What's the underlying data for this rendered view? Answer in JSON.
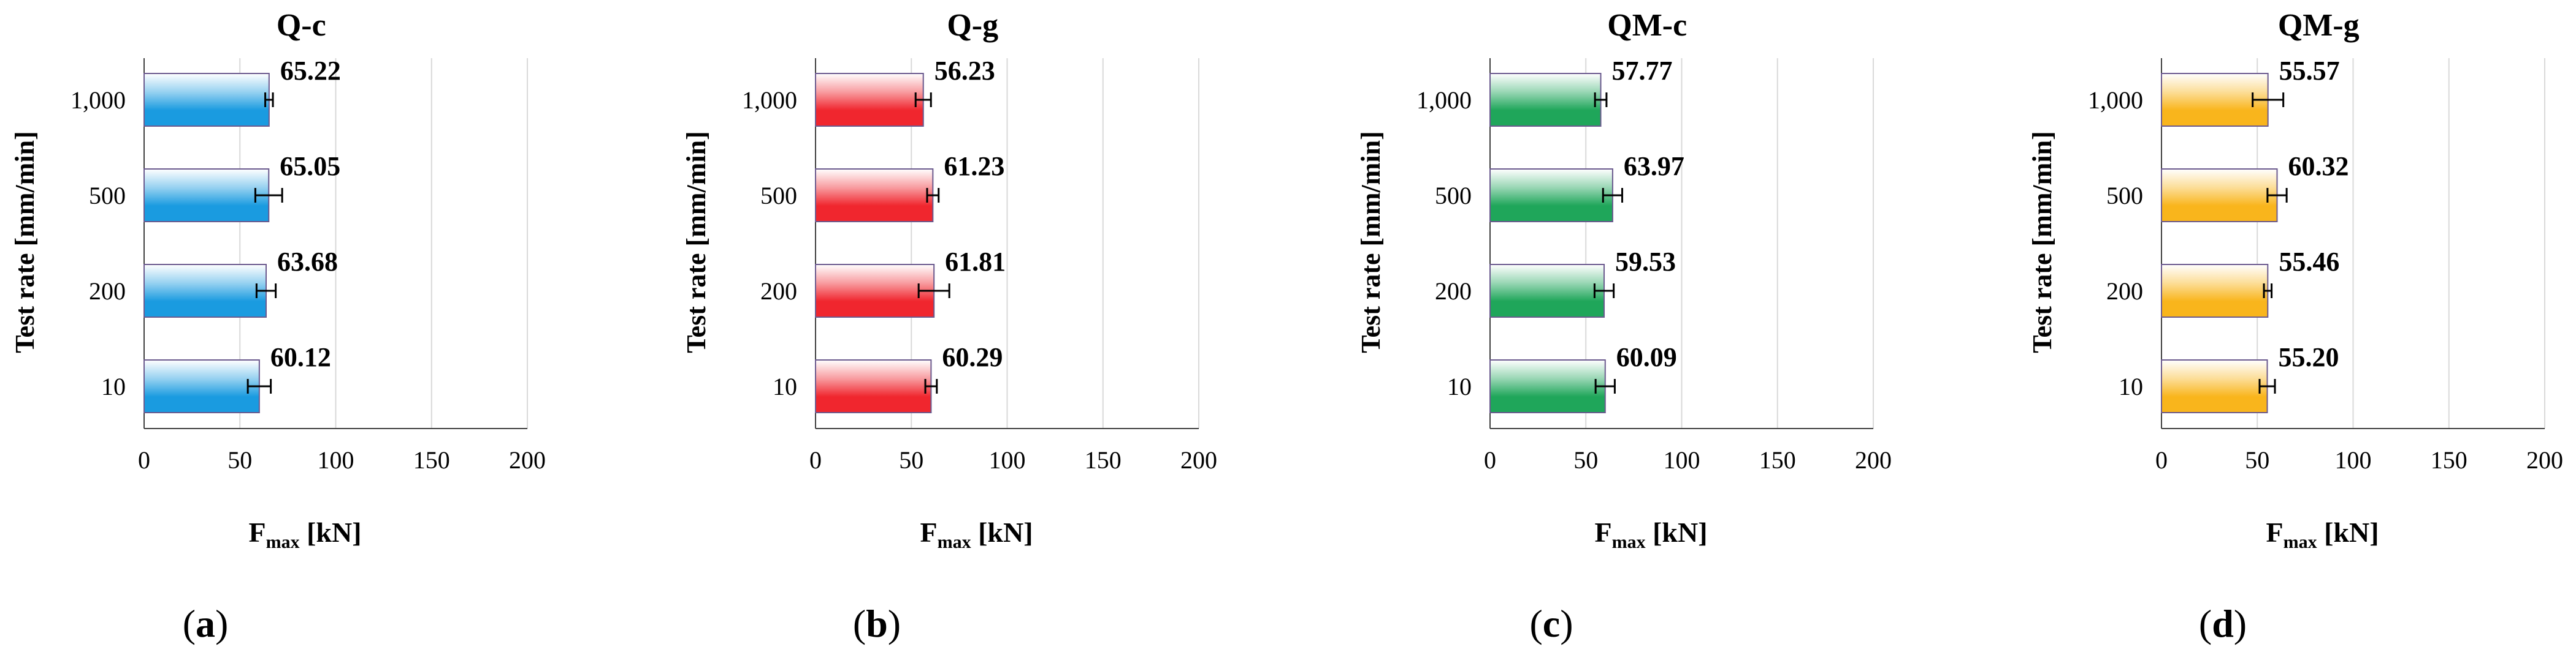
{
  "chart_data": [
    {
      "type": "bar",
      "orientation": "horizontal",
      "title": "Q-c",
      "caption_letter": "a",
      "categories": [
        "1,000",
        "500",
        "200",
        "10"
      ],
      "values": [
        65.22,
        65.05,
        63.68,
        60.12
      ],
      "value_labels": [
        "65.22",
        "65.05",
        "63.68",
        "60.12"
      ],
      "error_bars": [
        2,
        7,
        5,
        6
      ],
      "ylabel": "Test rate [mm/min]",
      "xlabel_main": "F",
      "xlabel_sub": "max",
      "xlabel_unit": " [kN]",
      "xlim": [
        0,
        200
      ],
      "xticks": [
        0,
        50,
        100,
        150,
        200
      ],
      "xtick_labels": [
        "0",
        "50",
        "100",
        "150",
        "200"
      ],
      "bar_color": "#1a9be0",
      "grid": true
    },
    {
      "type": "bar",
      "orientation": "horizontal",
      "title": "Q-g",
      "caption_letter": "b",
      "categories": [
        "1,000",
        "500",
        "200",
        "10"
      ],
      "values": [
        56.23,
        61.23,
        61.81,
        60.29
      ],
      "value_labels": [
        "56.23",
        "61.23",
        "61.81",
        "60.29"
      ],
      "error_bars": [
        4,
        3,
        8,
        3
      ],
      "ylabel": "Test rate [mm/min]",
      "xlabel_main": "F",
      "xlabel_sub": "max",
      "xlabel_unit": " [kN]",
      "xlim": [
        0,
        200
      ],
      "xticks": [
        0,
        50,
        100,
        150,
        200
      ],
      "xtick_labels": [
        "0",
        "50",
        "100",
        "150",
        "200"
      ],
      "bar_color": "#f0262e",
      "grid": true
    },
    {
      "type": "bar",
      "orientation": "horizontal",
      "title": "QM-c",
      "caption_letter": "c",
      "categories": [
        "1,000",
        "500",
        "200",
        "10"
      ],
      "values": [
        57.77,
        63.97,
        59.53,
        60.09
      ],
      "value_labels": [
        "57.77",
        "63.97",
        "59.53",
        "60.09"
      ],
      "error_bars": [
        3,
        5,
        5,
        5
      ],
      "ylabel": "Test rate [mm/min]",
      "xlabel_main": "F",
      "xlabel_sub": "max",
      "xlabel_unit": " [kN]",
      "xlim": [
        0,
        200
      ],
      "xticks": [
        0,
        50,
        100,
        150,
        200
      ],
      "xtick_labels": [
        "0",
        "50",
        "100",
        "150",
        "200"
      ],
      "bar_color": "#1fa65a",
      "grid": true
    },
    {
      "type": "bar",
      "orientation": "horizontal",
      "title": "QM-g",
      "caption_letter": "d",
      "categories": [
        "1,000",
        "500",
        "200",
        "10"
      ],
      "values": [
        55.57,
        60.32,
        55.46,
        55.2
      ],
      "value_labels": [
        "55.57",
        "60.32",
        "55.46",
        "55.20"
      ],
      "error_bars": [
        8,
        5,
        2,
        4
      ],
      "ylabel": "Test rate [mm/min]",
      "xlabel_main": "F",
      "xlabel_sub": "max",
      "xlabel_unit": " [kN]",
      "xlim": [
        0,
        200
      ],
      "xticks": [
        0,
        50,
        100,
        150,
        200
      ],
      "xtick_labels": [
        "0",
        "50",
        "100",
        "150",
        "200"
      ],
      "bar_color": "#f9b51c",
      "grid": true
    }
  ]
}
